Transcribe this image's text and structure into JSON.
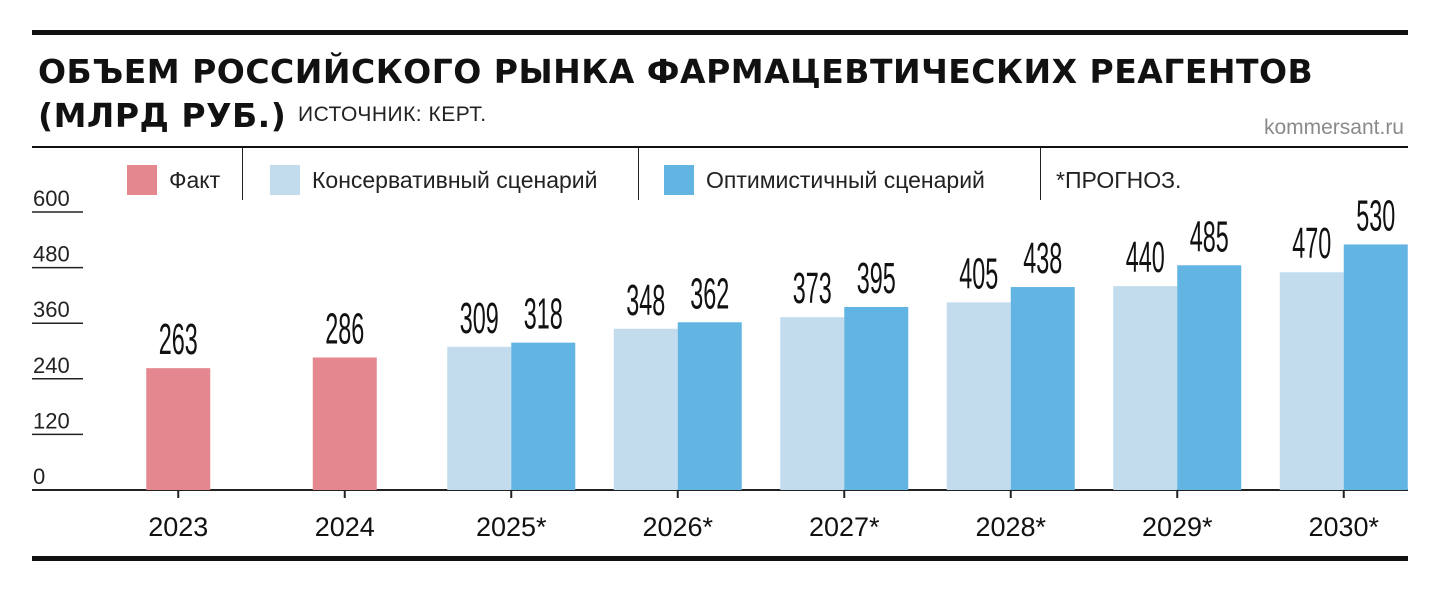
{
  "header": {
    "title_line1": "ОБЪЕМ РОССИЙСКОГО РЫНКА ФАРМАЦЕВТИЧЕСКИХ РЕАГЕНТОВ",
    "title_line2": "(МЛРД РУБ.)",
    "source": "ИСТОЧНИК: КЕРТ.",
    "site": "kommersant.ru"
  },
  "legend": {
    "items": [
      {
        "label": "Факт",
        "color": "#e4878f"
      },
      {
        "label": "Консервативный сценарий",
        "color": "#c2dced"
      },
      {
        "label": "Оптимистичный сценарий",
        "color": "#62b4e2"
      }
    ],
    "note": "*ПРОГНОЗ."
  },
  "chart_data": {
    "type": "bar",
    "title": "ОБЪЕМ РОССИЙСКОГО РЫНКА ФАРМАЦЕВТИЧЕСКИХ РЕАГЕНТОВ (МЛРД РУБ.)",
    "categories": [
      "2023",
      "2024",
      "2025*",
      "2026*",
      "2027*",
      "2028*",
      "2029*",
      "2030*"
    ],
    "series": [
      {
        "name": "Факт",
        "color": "#e4878f",
        "values": [
          263,
          286,
          null,
          null,
          null,
          null,
          null,
          null
        ]
      },
      {
        "name": "Консервативный сценарий",
        "color": "#c2dced",
        "values": [
          null,
          null,
          309,
          348,
          373,
          405,
          440,
          470
        ]
      },
      {
        "name": "Оптимистичный сценарий",
        "color": "#62b4e2",
        "values": [
          null,
          null,
          318,
          362,
          395,
          438,
          485,
          530
        ]
      }
    ],
    "yticks": [
      0,
      120,
      240,
      360,
      480,
      600
    ],
    "ylim": [
      0,
      600
    ],
    "xlabel": "",
    "ylabel": "",
    "grid": false,
    "legend_position": "top"
  }
}
